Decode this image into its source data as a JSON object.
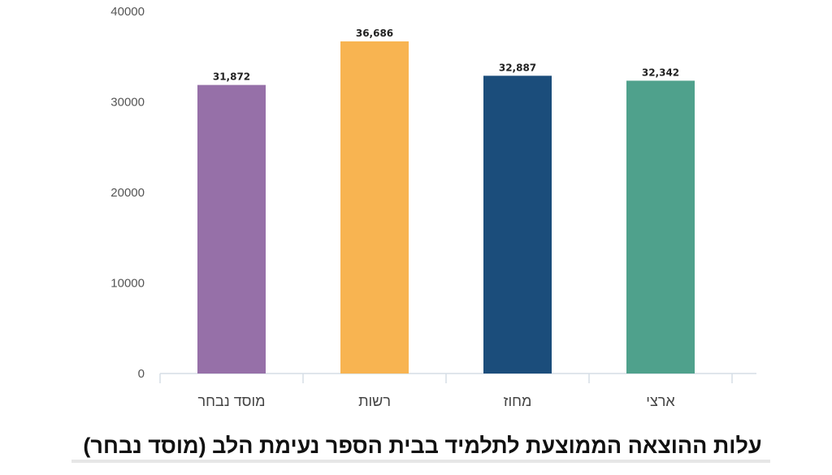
{
  "chart_data": {
    "type": "bar",
    "title": "עלות ההוצאה הממוצעת לתלמיד בבית הספר נעימת הלב (מוסד נבחר)",
    "categories": [
      "מוסד נבחר",
      "רשות",
      "מחוז",
      "ארצי"
    ],
    "values": [
      31872,
      36686,
      32887,
      32342
    ],
    "data_labels": [
      "31,872",
      "36,686",
      "32,887",
      "32,342"
    ],
    "colors": [
      "#9670a8",
      "#f8b451",
      "#1b4d7b",
      "#4fa18c"
    ],
    "ylim": [
      0,
      40000
    ],
    "yticks": [
      "0",
      "10000",
      "20000",
      "30000",
      "40000"
    ],
    "xlabel": "",
    "ylabel": "",
    "grid": false,
    "legend": "none"
  }
}
